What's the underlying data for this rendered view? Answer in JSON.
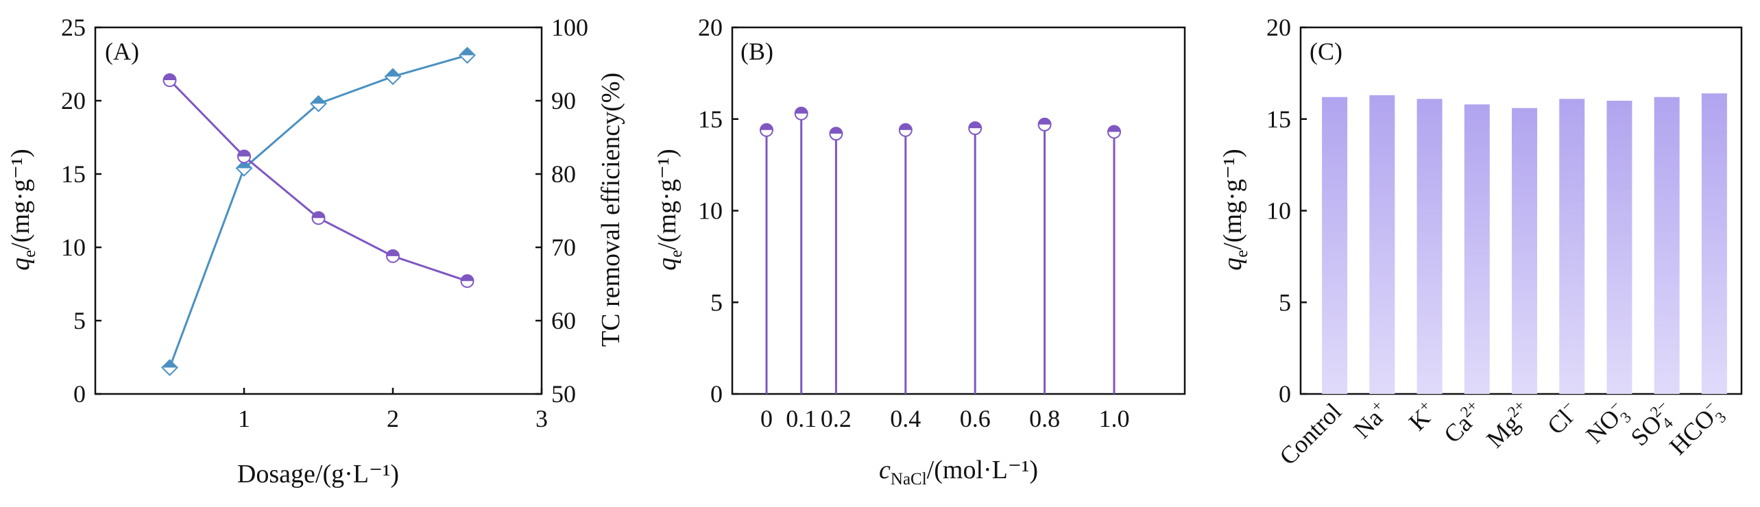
{
  "colors": {
    "purple": "#7e57c2",
    "purple_light_fill": "#ffffff",
    "blue": "#4a90c2",
    "blue_light": "#9fc9e6",
    "bar_top": "#b1a4ef",
    "bar_bottom": "#e0dbfa"
  },
  "chart_data": [
    {
      "panel": "(A)",
      "type": "line",
      "xlabel": "Dosage/(g·L⁻¹)",
      "ylabel_left_q": "q",
      "ylabel_left_sub": "e",
      "ylabel_left_rest": "/(mg·g⁻¹)",
      "ylabel_right": "TC removal efficiency(%)",
      "xlim": [
        0,
        3
      ],
      "ylim_left": [
        0,
        25
      ],
      "ylim_right": [
        50,
        100
      ],
      "x_ticks": [
        "1",
        "2",
        "3"
      ],
      "y_ticks_left": [
        "0",
        "5",
        "10",
        "15",
        "20",
        "25"
      ],
      "y_ticks_right": [
        "50",
        "60",
        "70",
        "80",
        "90",
        "100"
      ],
      "x": [
        0.5,
        1.0,
        1.5,
        2.0,
        2.5
      ],
      "series": [
        {
          "axis": "left",
          "marker": "half-circle",
          "color": "#7e57c2",
          "values": [
            21.4,
            16.2,
            12.0,
            9.4,
            7.7
          ]
        },
        {
          "axis": "right",
          "marker": "half-diamond",
          "color": "#4a90c2",
          "values": [
            53.6,
            80.8,
            89.6,
            93.3,
            96.2
          ]
        }
      ]
    },
    {
      "panel": "(B)",
      "type": "scatter",
      "xlabel_c": "c",
      "xlabel_sub": "NaCl",
      "xlabel_rest": "/(mol·L⁻¹)",
      "ylabel_q": "q",
      "ylabel_sub": "e",
      "ylabel_rest": "/(mg·g⁻¹)",
      "ylim": [
        0,
        20
      ],
      "y_ticks": [
        "0",
        "5",
        "10",
        "15",
        "20"
      ],
      "categories": [
        "0",
        "0.1",
        "0.2",
        "0.4",
        "0.6",
        "0.8",
        "1.0"
      ],
      "values": [
        14.4,
        15.3,
        14.2,
        14.4,
        14.5,
        14.7,
        14.3
      ]
    },
    {
      "panel": "(C)",
      "type": "bar",
      "ylabel_q": "q",
      "ylabel_sub": "e",
      "ylabel_rest": "/(mg·g⁻¹)",
      "ylim": [
        0,
        20
      ],
      "y_ticks": [
        "0",
        "5",
        "10",
        "15",
        "20"
      ],
      "categories": [
        {
          "base": "Control",
          "sup": "",
          "sub": ""
        },
        {
          "base": "Na",
          "sup": "+",
          "sub": ""
        },
        {
          "base": "K",
          "sup": "+",
          "sub": ""
        },
        {
          "base": "Ca",
          "sup": "2+",
          "sub": ""
        },
        {
          "base": "Mg",
          "sup": "2+",
          "sub": ""
        },
        {
          "base": "Cl",
          "sup": "−",
          "sub": ""
        },
        {
          "base": "NO",
          "sup": "−",
          "sub": "3"
        },
        {
          "base": "SO",
          "sup": "2−",
          "sub": "4"
        },
        {
          "base": "HCO",
          "sup": "−",
          "sub": "3"
        }
      ],
      "values": [
        16.2,
        16.3,
        16.1,
        15.8,
        15.6,
        16.1,
        16.0,
        16.2,
        16.4
      ]
    }
  ]
}
